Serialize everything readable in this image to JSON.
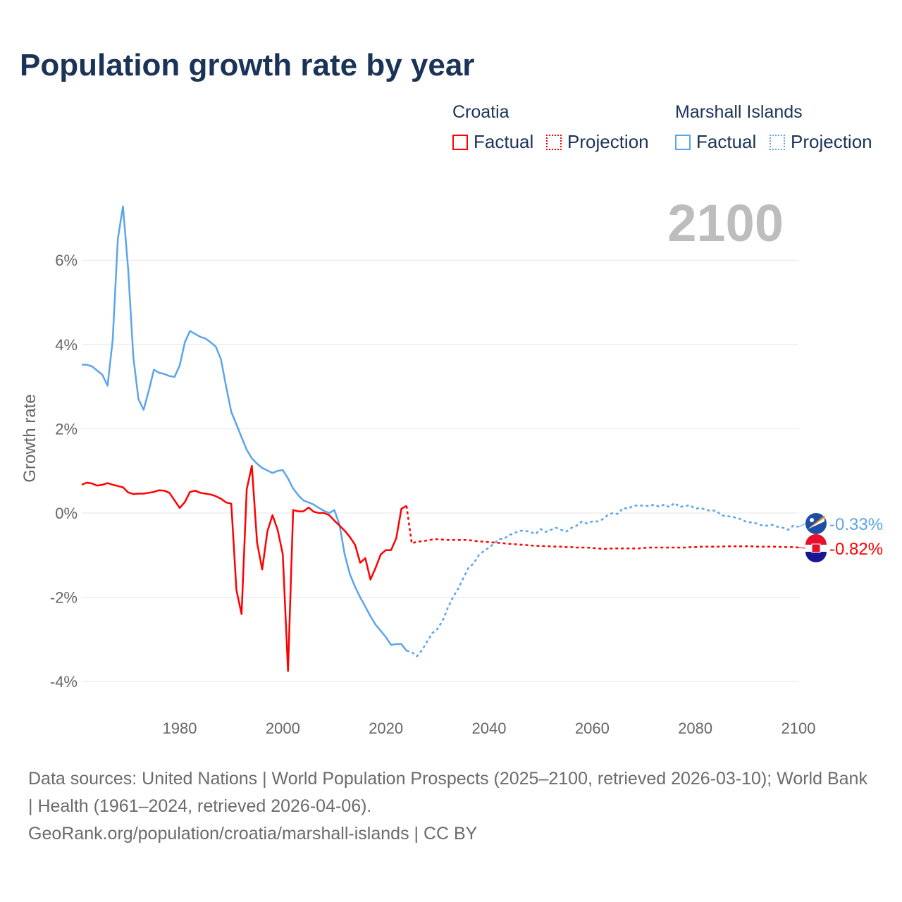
{
  "title": "Population growth rate by year",
  "legend": {
    "groups": [
      {
        "name": "Croatia",
        "color": "#ff0000",
        "factual": "Factual",
        "projection": "Projection"
      },
      {
        "name": "Marshall Islands",
        "color": "#5ba4ec",
        "factual": "Factual",
        "projection": "Projection"
      }
    ]
  },
  "footer": {
    "sources": "Data sources: United Nations | World Population Prospects (2025–2100, retrieved 2026-03-10); World Bank | Health (1961–2024, retrieved 2026-04-06).",
    "link": "GeoRank.org/population/croatia/marshall-islands | CC BY"
  },
  "chart_data": {
    "type": "line",
    "title": "Population growth rate by year",
    "xlabel": "",
    "ylabel": "Growth rate",
    "year_label": "2100",
    "xlim": [
      1961,
      2100
    ],
    "ylim": [
      -4.7,
      7.4
    ],
    "x_ticks": [
      1980,
      2000,
      2020,
      2040,
      2060,
      2080,
      2100
    ],
    "y_ticks": [
      6,
      4,
      2,
      0,
      -2,
      -4
    ],
    "y_tick_labels": [
      "6%",
      "4%",
      "2%",
      "0%",
      "-2%",
      "-4%"
    ],
    "grid": true,
    "series": [
      {
        "name": "Marshall Islands",
        "color": "#5ba4ec",
        "end_label": "-0.33%",
        "factual": {
          "start_year": 1961,
          "values": [
            3.52,
            3.52,
            3.48,
            3.38,
            3.28,
            3.02,
            4.1,
            6.5,
            7.28,
            5.8,
            3.7,
            2.7,
            2.45,
            2.9,
            3.4,
            3.33,
            3.3,
            3.25,
            3.23,
            3.5,
            4.05,
            4.32,
            4.25,
            4.18,
            4.14,
            4.05,
            3.95,
            3.65,
            3.0,
            2.4,
            2.1,
            1.8,
            1.5,
            1.3,
            1.17,
            1.07,
            1.01,
            0.95,
            1.0,
            1.02,
            0.82,
            0.58,
            0.42,
            0.3,
            0.25,
            0.2,
            0.12,
            0.05,
            0.0,
            0.07,
            -0.28,
            -0.98,
            -1.45,
            -1.75,
            -2.0,
            -2.22,
            -2.45,
            -2.65,
            -2.8,
            -2.95,
            -3.13,
            -3.11,
            -3.11,
            -3.27
          ]
        },
        "projection": {
          "start_year": 2024,
          "values": [
            -3.27,
            -3.3,
            -3.4,
            -3.25,
            -3.05,
            -2.85,
            -2.75,
            -2.55,
            -2.25,
            -2.0,
            -1.8,
            -1.55,
            -1.3,
            -1.2,
            -1.0,
            -0.9,
            -0.82,
            -0.72,
            -0.62,
            -0.6,
            -0.52,
            -0.47,
            -0.42,
            -0.42,
            -0.45,
            -0.5,
            -0.38,
            -0.45,
            -0.4,
            -0.35,
            -0.4,
            -0.44,
            -0.35,
            -0.3,
            -0.2,
            -0.25,
            -0.2,
            -0.2,
            -0.15,
            -0.05,
            0.0,
            -0.02,
            0.12,
            0.1,
            0.18,
            0.17,
            0.18,
            0.16,
            0.2,
            0.15,
            0.2,
            0.14,
            0.24,
            0.14,
            0.17,
            0.18,
            0.1,
            0.12,
            0.08,
            0.05,
            0.06,
            -0.05,
            -0.08,
            -0.08,
            -0.12,
            -0.15,
            -0.22,
            -0.22,
            -0.25,
            -0.3,
            -0.3,
            -0.28,
            -0.33,
            -0.35,
            -0.4,
            -0.3,
            -0.33
          ]
        }
      },
      {
        "name": "Croatia",
        "color": "#ff0000",
        "end_label": "-0.82%",
        "factual": {
          "start_year": 1961,
          "values": [
            0.67,
            0.72,
            0.7,
            0.65,
            0.67,
            0.71,
            0.67,
            0.64,
            0.61,
            0.49,
            0.45,
            0.46,
            0.46,
            0.48,
            0.5,
            0.54,
            0.53,
            0.48,
            0.3,
            0.12,
            0.26,
            0.5,
            0.53,
            0.48,
            0.46,
            0.44,
            0.4,
            0.34,
            0.25,
            0.22,
            -1.83,
            -2.4,
            0.56,
            1.12,
            -0.7,
            -1.34,
            -0.44,
            -0.05,
            -0.4,
            -0.98,
            -3.75,
            0.07,
            0.04,
            0.04,
            0.13,
            0.03,
            0.0,
            0.0,
            -0.05,
            -0.18,
            -0.3,
            -0.42,
            -0.57,
            -0.75,
            -1.18,
            -1.07,
            -1.58,
            -1.3,
            -0.98,
            -0.88,
            -0.88,
            -0.6,
            0.1,
            0.17
          ]
        },
        "projection": {
          "start_year": 2024,
          "values": [
            0.17,
            -0.72,
            -0.68,
            -0.67,
            -0.65,
            -0.63,
            -0.62,
            -0.63,
            -0.64,
            -0.64,
            -0.64,
            -0.64,
            -0.64,
            -0.66,
            -0.67,
            -0.68,
            -0.69,
            -0.7,
            -0.71,
            -0.72,
            -0.73,
            -0.74,
            -0.75,
            -0.76,
            -0.77,
            -0.78,
            -0.78,
            -0.79,
            -0.79,
            -0.8,
            -0.8,
            -0.81,
            -0.81,
            -0.82,
            -0.82,
            -0.82,
            -0.83,
            -0.84,
            -0.85,
            -0.85,
            -0.84,
            -0.84,
            -0.84,
            -0.84,
            -0.84,
            -0.84,
            -0.83,
            -0.82,
            -0.82,
            -0.82,
            -0.82,
            -0.82,
            -0.82,
            -0.82,
            -0.82,
            -0.81,
            -0.81,
            -0.8,
            -0.8,
            -0.8,
            -0.8,
            -0.8,
            -0.79,
            -0.79,
            -0.79,
            -0.79,
            -0.79,
            -0.79,
            -0.8,
            -0.8,
            -0.8,
            -0.8,
            -0.8,
            -0.81,
            -0.81,
            -0.81,
            -0.82
          ]
        }
      }
    ]
  }
}
